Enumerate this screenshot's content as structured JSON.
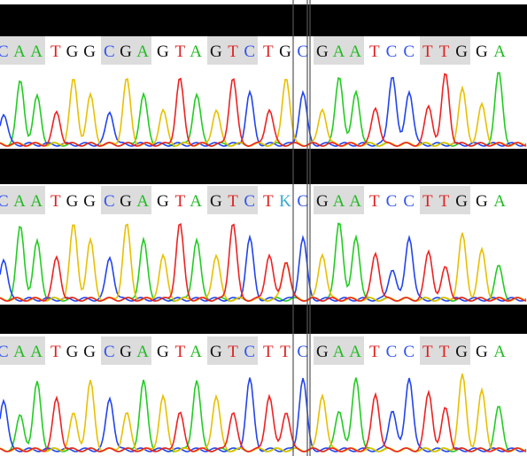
{
  "panels": [
    {
      "codons": [
        "CAA",
        "TGG",
        "CGA",
        "GTA",
        "GTC",
        "TGC",
        "GAA",
        "TCC",
        "TTG",
        "GA"
      ]
    },
    {
      "codons": [
        "CAA",
        "TGG",
        "CGA",
        "GTA",
        "GTC",
        "TKC",
        "GAA",
        "TCC",
        "TTG",
        "GA"
      ]
    },
    {
      "codons": [
        "CAA",
        "TGG",
        "CGA",
        "GTA",
        "GTC",
        "TTC",
        "GAA",
        "TCC",
        "TTG",
        "GA"
      ]
    }
  ]
}
